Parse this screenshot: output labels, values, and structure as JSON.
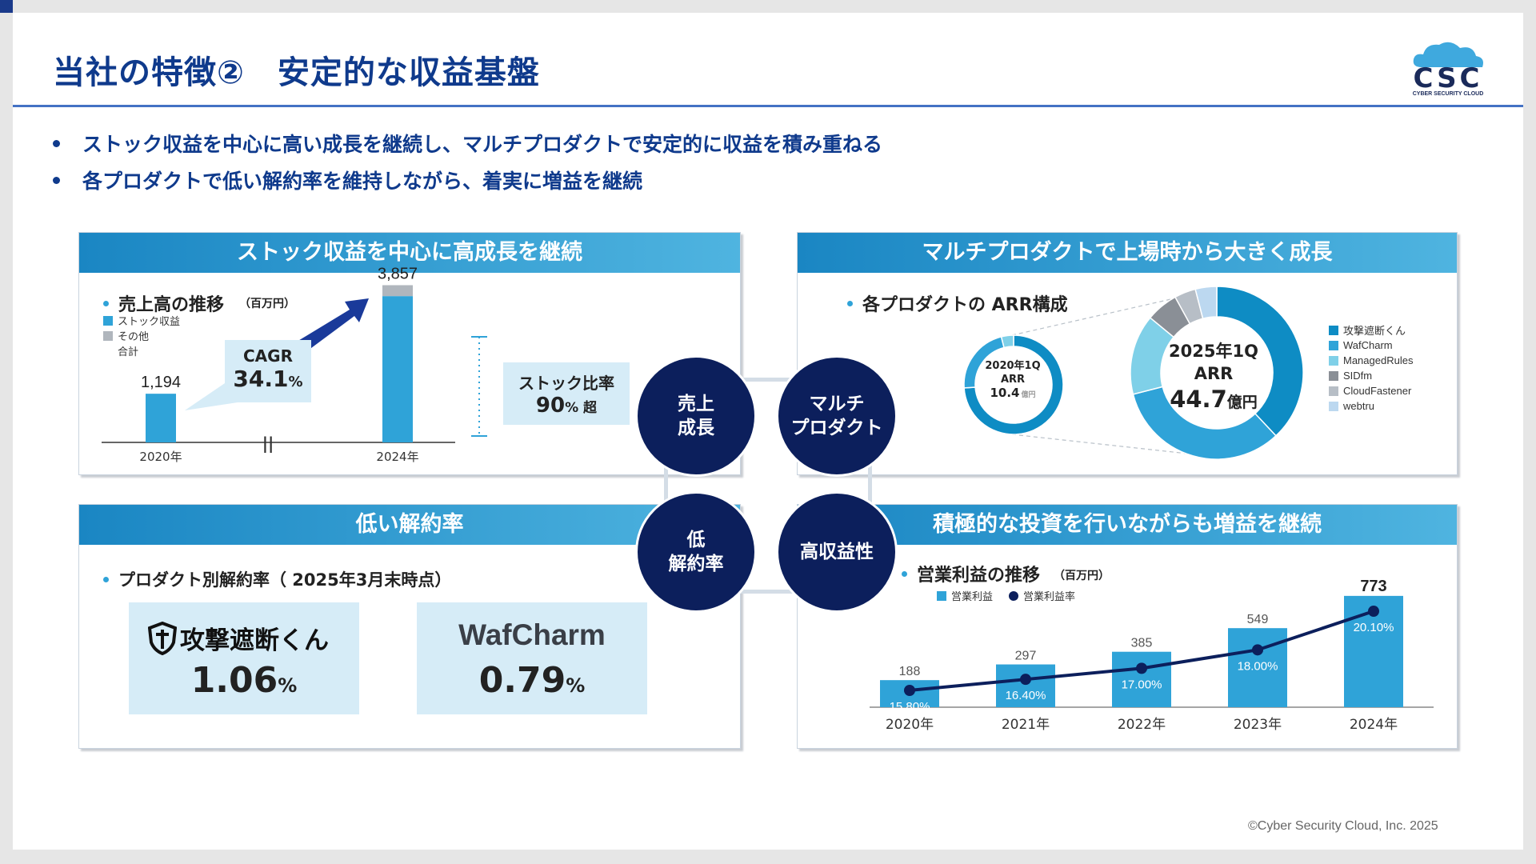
{
  "title": "当社の特徴②　安定的な収益基盤",
  "logo": {
    "mark": "CSC",
    "sub": "CYBER SECURITY CLOUD"
  },
  "bullets": [
    "ストック収益を中心に高い成長を継続し、マルチプロダクトで安定的に収益を積み重ねる",
    "各プロダクトで低い解約率を維持しながら、着実に増益を継続"
  ],
  "panel_tl": {
    "header": "ストック収益を中心に高成長を継続",
    "subtitle": "売上高の推移",
    "unit": "（百万円）",
    "legend": [
      "ストック収益",
      "その他",
      "合計"
    ],
    "cagr_label": "CAGR",
    "cagr_value": "34.1",
    "cagr_pct": "%",
    "break_mark": "||",
    "stock_label": "ストック比率",
    "stock_value": "90",
    "stock_pct": "% 超"
  },
  "panel_tr": {
    "header": "マルチプロダクトで上場時から大きく成長",
    "subtitle": "各プロダクトの ARR構成",
    "small_donut": {
      "l1": "2020年1Q",
      "l2": "ARR",
      "l3": "10.4",
      "l4": "億円"
    },
    "big_donut": {
      "l1": "2025年1Q",
      "l2": "ARR",
      "value": "44.7",
      "unit": "億円"
    },
    "legend": [
      "攻撃遮断くん",
      "WafCharm",
      "ManagedRules",
      "SIDfm",
      "CloudFastener",
      "webtru"
    ]
  },
  "panel_bl": {
    "header": "低い解約率",
    "subtitle": "プロダクト別解約率（ 2025年3月末時点）",
    "products": [
      {
        "name": "攻撃遮断くん",
        "value": "1.06",
        "pct": "%"
      },
      {
        "name": "WafCharm",
        "value": "0.79",
        "pct": "%"
      }
    ]
  },
  "panel_br": {
    "header": "積極的な投資を行いながらも増益を継続",
    "subtitle": "営業利益の推移",
    "unit": "（百万円）",
    "legend": [
      "営業利益",
      "営業利益率"
    ]
  },
  "circles": {
    "tl": "売上\n成長",
    "tr": "マルチ\nプロダクト",
    "bl": "低\n解約率",
    "br": "高収益性"
  },
  "chart_data": [
    {
      "type": "bar",
      "title": "売上高の推移",
      "categories": [
        "2020年",
        "2024年"
      ],
      "values": [
        1194,
        3857
      ],
      "value_labels": [
        "1,194",
        "3,857"
      ],
      "ylim": [
        0,
        4200
      ]
    },
    {
      "type": "pie",
      "title": "2020年1Q ARR",
      "labels": [
        "攻撃遮断くん",
        "WafCharm",
        "ManagedRules"
      ],
      "values": [
        74,
        22,
        4
      ]
    },
    {
      "type": "pie",
      "title": "2025年1Q ARR",
      "labels": [
        "攻撃遮断くん",
        "WafCharm",
        "ManagedRules",
        "SIDfm",
        "CloudFastener",
        "webtru"
      ],
      "values": [
        38,
        33,
        15,
        6,
        4,
        4
      ]
    },
    {
      "type": "bar",
      "title": "営業利益の推移",
      "categories": [
        "2020年",
        "2021年",
        "2022年",
        "2023年",
        "2024年"
      ],
      "series": [
        {
          "name": "営業利益",
          "values": [
            188,
            297,
            385,
            549,
            773
          ]
        },
        {
          "name": "営業利益率",
          "values": [
            15.8,
            16.4,
            17.0,
            18.0,
            20.1
          ],
          "labels": [
            "15.80%",
            "16.40%",
            "17.00%",
            "18.00%",
            "20.10%"
          ]
        }
      ],
      "ylim": [
        0,
        850
      ]
    }
  ],
  "colors": {
    "navy": "#0c1f5c",
    "blue": "#2fa3d8",
    "title": "#0f3a8c"
  },
  "footer": "©Cyber Security Cloud, Inc. 2025"
}
